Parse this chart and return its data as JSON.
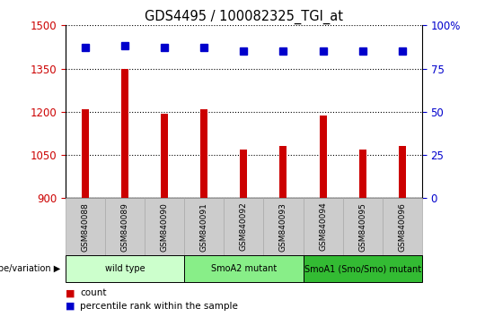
{
  "title": "GDS4495 / 100082325_TGI_at",
  "samples": [
    "GSM840088",
    "GSM840089",
    "GSM840090",
    "GSM840091",
    "GSM840092",
    "GSM840093",
    "GSM840094",
    "GSM840095",
    "GSM840096"
  ],
  "counts": [
    1210,
    1350,
    1193,
    1210,
    1068,
    1082,
    1187,
    1070,
    1082
  ],
  "percentiles": [
    87,
    88,
    87,
    87,
    85,
    85,
    85,
    85,
    85
  ],
  "ylim_left": [
    900,
    1500
  ],
  "ylim_right": [
    0,
    100
  ],
  "yticks_left": [
    900,
    1050,
    1200,
    1350,
    1500
  ],
  "yticks_right": [
    0,
    25,
    50,
    75,
    100
  ],
  "bar_color": "#cc0000",
  "dot_color": "#0000cc",
  "groups": [
    {
      "label": "wild type",
      "start": 0,
      "end": 3,
      "color": "#ccffcc"
    },
    {
      "label": "SmoA2 mutant",
      "start": 3,
      "end": 6,
      "color": "#88ee88"
    },
    {
      "label": "SmoA1 (Smo/Smo) mutant",
      "start": 6,
      "end": 9,
      "color": "#33bb33"
    }
  ],
  "tick_label_color_left": "#cc0000",
  "tick_label_color_right": "#0000cc",
  "tick_bg_color": "#cccccc",
  "tick_edge_color": "#aaaaaa",
  "genotype_label": "genotype/variation",
  "legend_items": [
    {
      "label": "count",
      "color": "#cc0000"
    },
    {
      "label": "percentile rank within the sample",
      "color": "#0000cc"
    }
  ]
}
